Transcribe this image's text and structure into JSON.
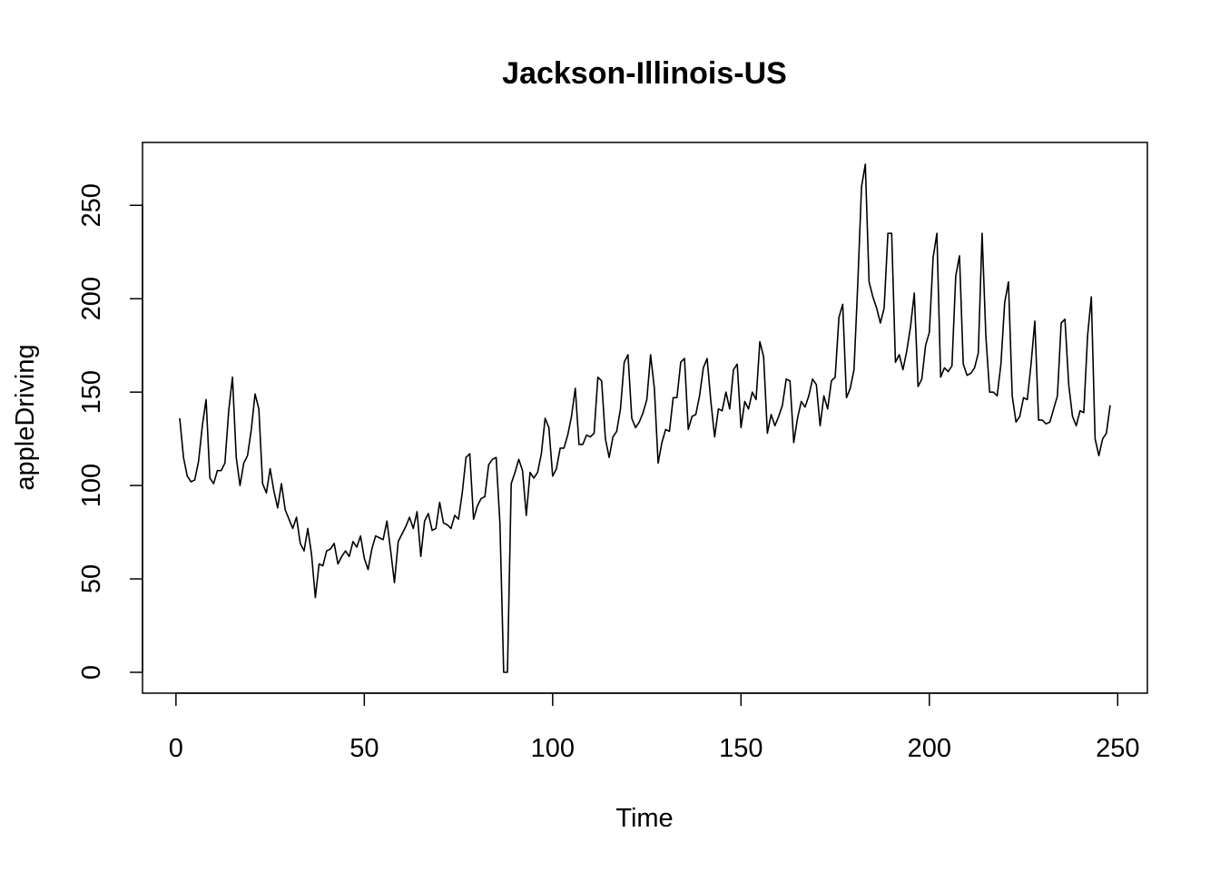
{
  "chart_data": {
    "type": "line",
    "title": "Jackson-Illinois-US",
    "xlabel": "Time",
    "ylabel": "appleDriving",
    "xlim": [
      1,
      248
    ],
    "ylim": [
      0,
      272
    ],
    "x_ticks": [
      0,
      50,
      100,
      150,
      200,
      250
    ],
    "y_ticks": [
      0,
      50,
      100,
      150,
      200,
      250
    ],
    "x_tick_labels": [
      "0",
      "50",
      "100",
      "150",
      "200",
      "250"
    ],
    "y_tick_labels": [
      "0",
      "50",
      "100",
      "150",
      "200",
      "250"
    ],
    "grid": false,
    "legend": "none",
    "series": [
      {
        "color": "#000000",
        "x_start": 1,
        "x_step": 1,
        "values": [
          136,
          115,
          105,
          102,
          103,
          113,
          132,
          146,
          104,
          101,
          108,
          108,
          112,
          140,
          158,
          115,
          100,
          112,
          116,
          130,
          149,
          141,
          101,
          96,
          109,
          97,
          88,
          101,
          87,
          82,
          77,
          83,
          69,
          65,
          77,
          63,
          40,
          58,
          57,
          65,
          66,
          69,
          58,
          62,
          65,
          62,
          70,
          67,
          73,
          61,
          55,
          66,
          73,
          72,
          71,
          81,
          65,
          48,
          70,
          74,
          78,
          83,
          77,
          86,
          62,
          81,
          85,
          76,
          77,
          91,
          80,
          79,
          77,
          84,
          82,
          96,
          115,
          117,
          82,
          89,
          93,
          94,
          111,
          114,
          115,
          80,
          0,
          0,
          101,
          107,
          114,
          108,
          84,
          107,
          104,
          107,
          117,
          136,
          131,
          105,
          109,
          120,
          120,
          127,
          137,
          152,
          122,
          122,
          127,
          126,
          128,
          158,
          156,
          125,
          115,
          126,
          129,
          141,
          166,
          170,
          136,
          131,
          134,
          139,
          146,
          170,
          152,
          112,
          123,
          130,
          129,
          147,
          147,
          166,
          168,
          130,
          137,
          138,
          148,
          163,
          168,
          145,
          126,
          141,
          140,
          150,
          141,
          162,
          165,
          131,
          145,
          141,
          150,
          146,
          177,
          169,
          128,
          138,
          132,
          137,
          143,
          157,
          156,
          123,
          136,
          145,
          142,
          148,
          157,
          154,
          132,
          148,
          141,
          156,
          158,
          190,
          197,
          147,
          152,
          162,
          208,
          260,
          272,
          209,
          201,
          195,
          187,
          195,
          235,
          235,
          166,
          170,
          162,
          172,
          185,
          203,
          153,
          157,
          175,
          182,
          222,
          235,
          158,
          163,
          161,
          164,
          212,
          223,
          165,
          159,
          160,
          163,
          171,
          235,
          180,
          150,
          150,
          148,
          165,
          198,
          209,
          148,
          134,
          137,
          147,
          146,
          165,
          188,
          135,
          135,
          133,
          134,
          141,
          148,
          187,
          189,
          154,
          137,
          132,
          140,
          139,
          180,
          201,
          125,
          116,
          125,
          128,
          143
        ]
      }
    ]
  }
}
